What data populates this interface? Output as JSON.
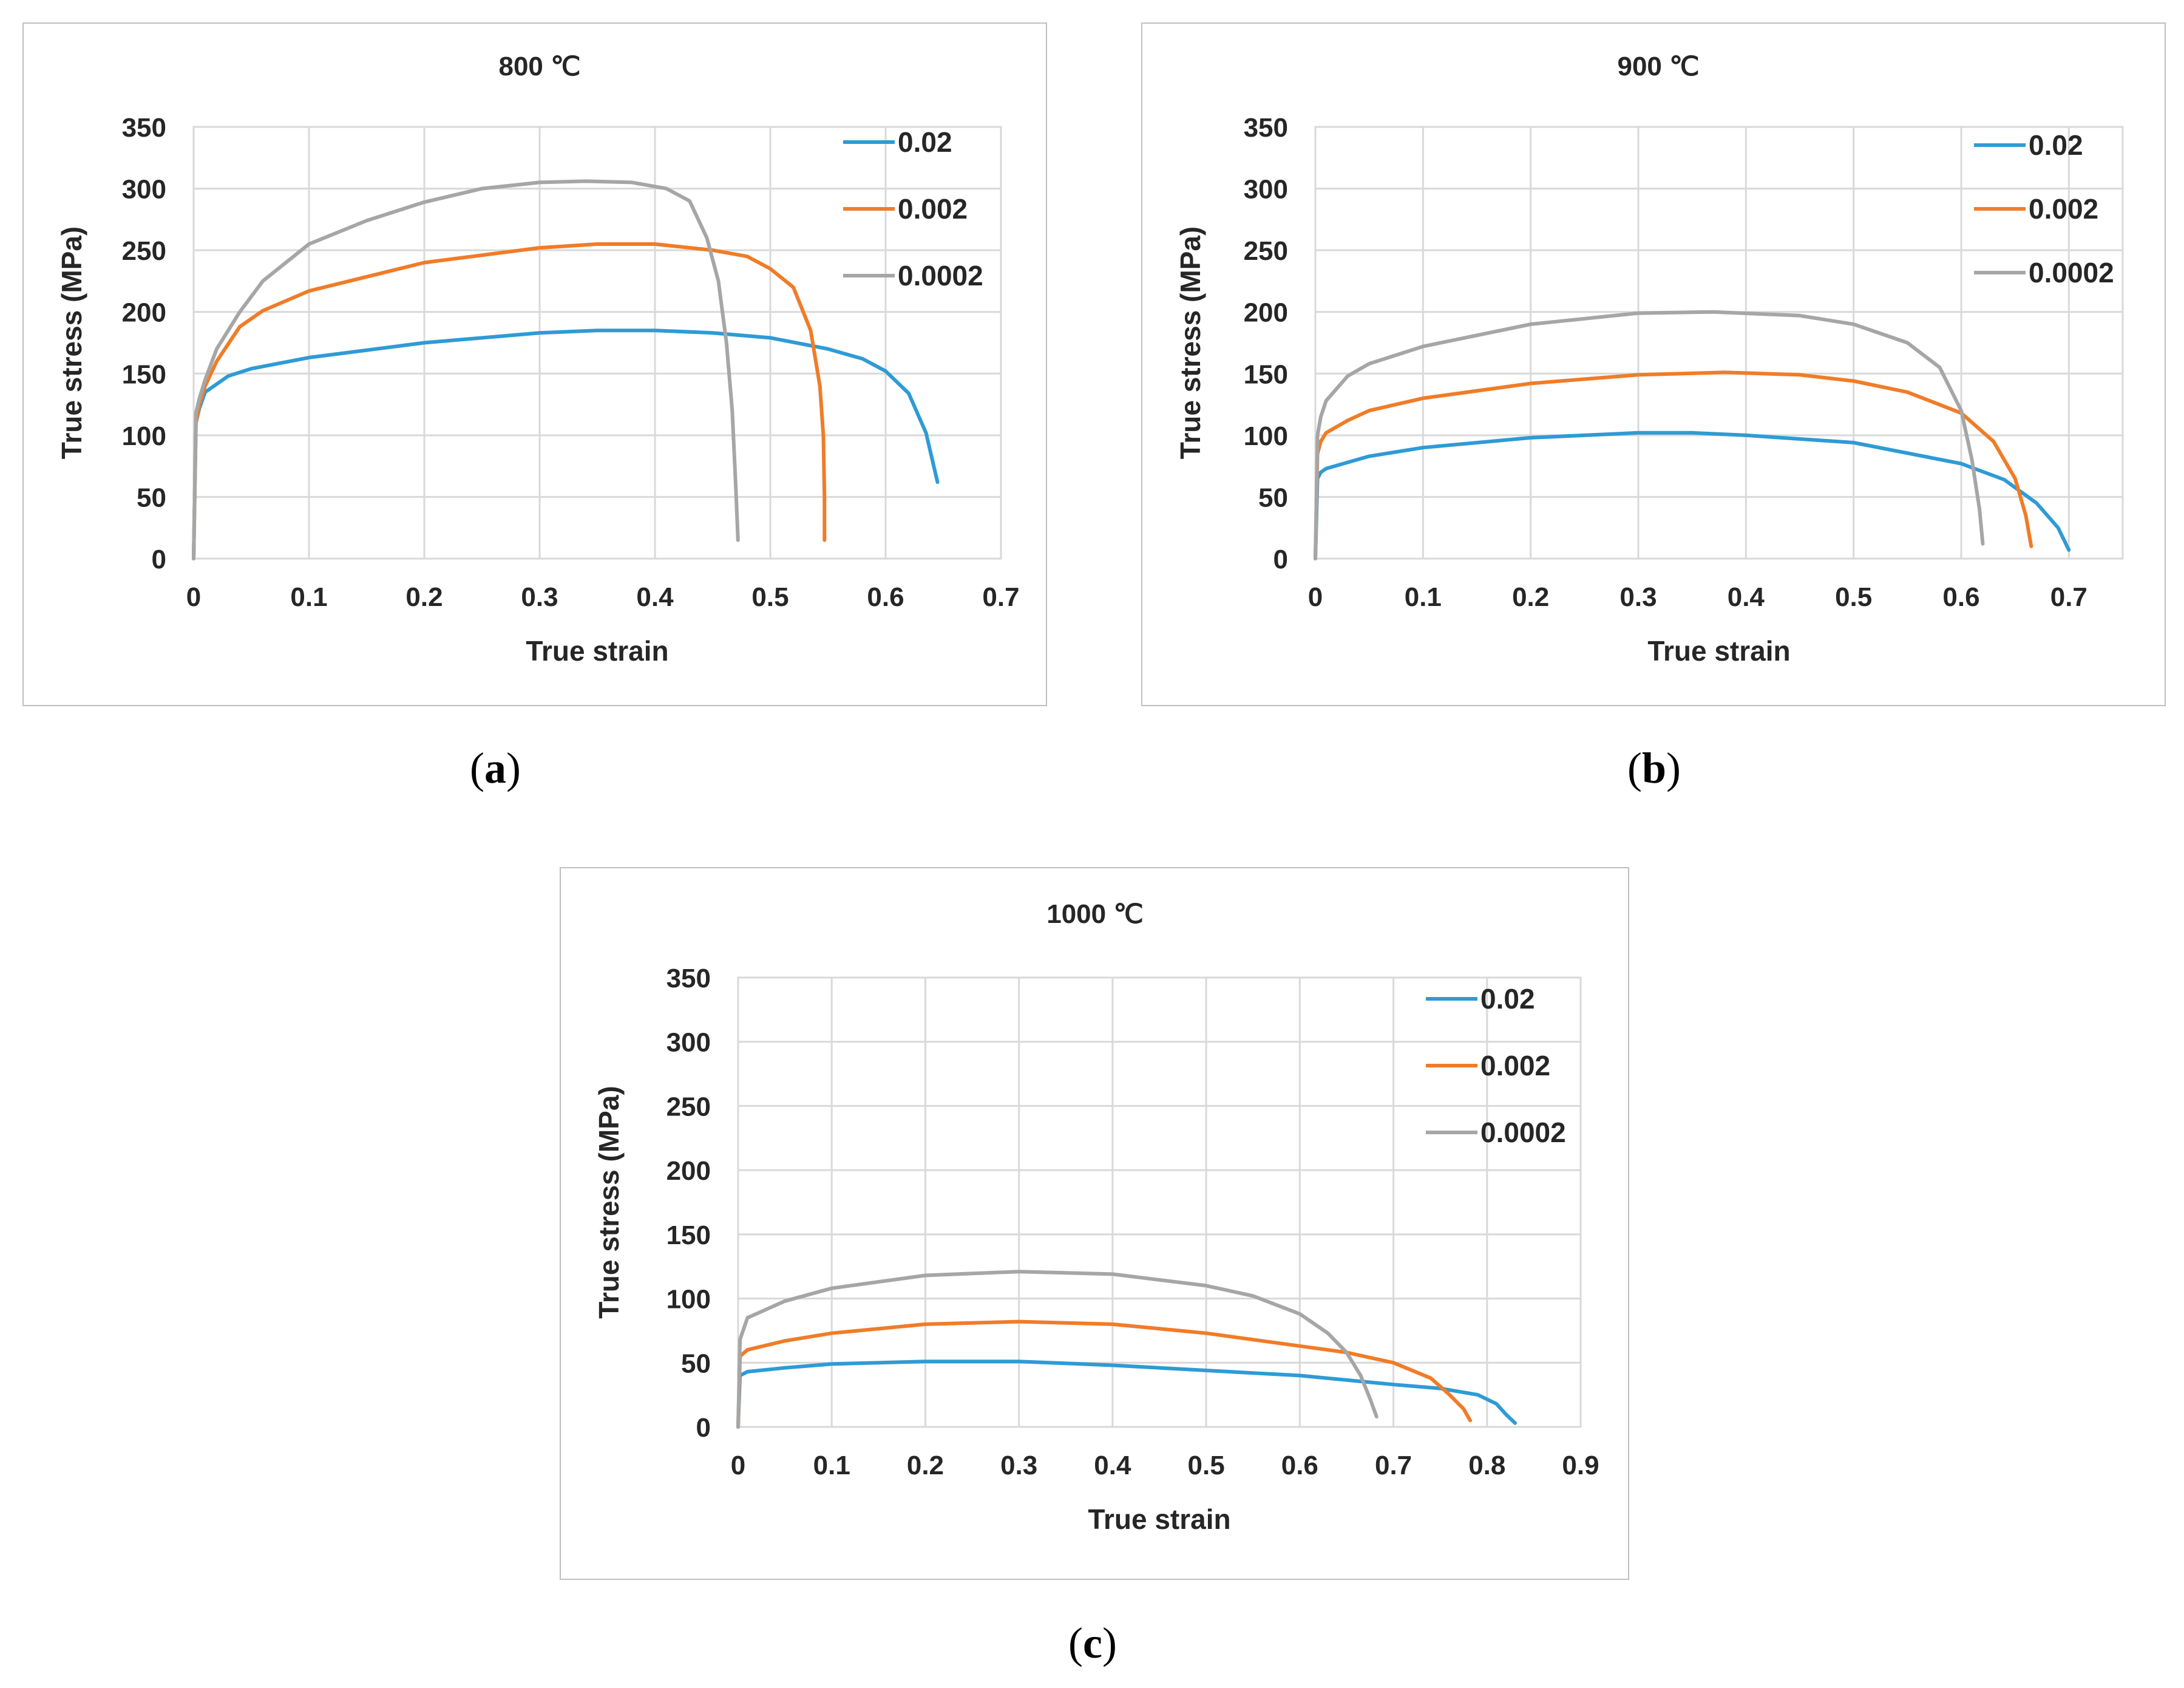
{
  "colors": {
    "s1": "#2e9bd6",
    "s2": "#f07c28",
    "s3": "#a6a6a6",
    "grid": "#d9d9d9",
    "frame": "#bfbfbf"
  },
  "captions": {
    "a": "a",
    "b": "b",
    "c": "c"
  },
  "chart_data": [
    {
      "id": "a",
      "type": "line",
      "title": "800 ℃",
      "xlabel": "True strain",
      "ylabel": "True stress (MPa)",
      "xlim": [
        0,
        0.7
      ],
      "ylim": [
        0,
        350
      ],
      "xticks": [
        0,
        0.1,
        0.2,
        0.3,
        0.4,
        0.5,
        0.6,
        0.7
      ],
      "xtick_labels": [
        "0",
        "0.1",
        "0.2",
        "0.3",
        "0.4",
        "0.5",
        "0.6",
        "0.7"
      ],
      "yticks": [
        0,
        50,
        100,
        150,
        200,
        250,
        300,
        350
      ],
      "ytick_labels": [
        "0",
        "50",
        "100",
        "150",
        "200",
        "250",
        "300",
        "350"
      ],
      "grid": true,
      "legend": "top-right",
      "series": [
        {
          "name": "0.02",
          "color_key": "s1",
          "x": [
            0,
            0.002,
            0.005,
            0.01,
            0.03,
            0.05,
            0.1,
            0.2,
            0.3,
            0.35,
            0.4,
            0.45,
            0.5,
            0.55,
            0.58,
            0.6,
            0.62,
            0.635,
            0.645
          ],
          "y": [
            0,
            110,
            122,
            135,
            148,
            154,
            163,
            175,
            183,
            185,
            185,
            183,
            179,
            170,
            162,
            152,
            134,
            102,
            62
          ]
        },
        {
          "name": "0.002",
          "color_key": "s2",
          "x": [
            0,
            0.002,
            0.005,
            0.01,
            0.02,
            0.04,
            0.06,
            0.1,
            0.2,
            0.3,
            0.35,
            0.4,
            0.45,
            0.48,
            0.5,
            0.52,
            0.535,
            0.543,
            0.546,
            0.547,
            0.547
          ],
          "y": [
            0,
            110,
            125,
            140,
            160,
            188,
            201,
            217,
            240,
            252,
            255,
            255,
            250,
            245,
            235,
            220,
            185,
            140,
            100,
            50,
            15
          ]
        },
        {
          "name": "0.0002",
          "color_key": "s3",
          "x": [
            0,
            0.002,
            0.005,
            0.01,
            0.02,
            0.04,
            0.06,
            0.1,
            0.15,
            0.2,
            0.25,
            0.3,
            0.34,
            0.38,
            0.41,
            0.43,
            0.445,
            0.455,
            0.462,
            0.467,
            0.47,
            0.472
          ],
          "y": [
            0,
            118,
            130,
            145,
            170,
            200,
            225,
            255,
            274,
            289,
            300,
            305,
            306,
            305,
            300,
            290,
            260,
            225,
            175,
            120,
            60,
            15
          ]
        }
      ]
    },
    {
      "id": "b",
      "type": "line",
      "title": "900 ℃",
      "xlabel": "True strain",
      "ylabel": "True stress (MPa)",
      "xlim": [
        0,
        0.75
      ],
      "ylim": [
        0,
        350
      ],
      "xticks": [
        0,
        0.1,
        0.2,
        0.3,
        0.4,
        0.5,
        0.6,
        0.7
      ],
      "xtick_labels": [
        "0",
        "0.1",
        "0.2",
        "0.3",
        "0.4",
        "0.5",
        "0.6",
        "0.7"
      ],
      "yticks": [
        0,
        50,
        100,
        150,
        200,
        250,
        300,
        350
      ],
      "ytick_labels": [
        "0",
        "50",
        "100",
        "150",
        "200",
        "250",
        "300",
        "350"
      ],
      "grid": true,
      "legend": "top-right",
      "series": [
        {
          "name": "0.02",
          "color_key": "s1",
          "x": [
            0,
            0.002,
            0.005,
            0.01,
            0.03,
            0.05,
            0.1,
            0.2,
            0.3,
            0.35,
            0.4,
            0.5,
            0.6,
            0.64,
            0.67,
            0.69,
            0.7
          ],
          "y": [
            0,
            65,
            70,
            73,
            78,
            83,
            90,
            98,
            102,
            102,
            100,
            94,
            77,
            64,
            45,
            25,
            7
          ]
        },
        {
          "name": "0.002",
          "color_key": "s2",
          "x": [
            0,
            0.002,
            0.005,
            0.01,
            0.03,
            0.05,
            0.1,
            0.2,
            0.3,
            0.38,
            0.45,
            0.5,
            0.55,
            0.6,
            0.63,
            0.65,
            0.66,
            0.665
          ],
          "y": [
            0,
            85,
            95,
            102,
            112,
            120,
            130,
            142,
            149,
            151,
            149,
            144,
            135,
            118,
            95,
            65,
            35,
            10
          ]
        },
        {
          "name": "0.0002",
          "color_key": "s3",
          "x": [
            0,
            0.002,
            0.005,
            0.01,
            0.03,
            0.05,
            0.1,
            0.2,
            0.3,
            0.37,
            0.45,
            0.5,
            0.55,
            0.58,
            0.6,
            0.61,
            0.617,
            0.62
          ],
          "y": [
            0,
            100,
            115,
            128,
            148,
            158,
            172,
            190,
            199,
            200,
            197,
            190,
            175,
            155,
            120,
            80,
            40,
            12
          ]
        }
      ]
    },
    {
      "id": "c",
      "type": "line",
      "title": "1000 ℃",
      "xlabel": "True strain",
      "ylabel": "True stress (MPa)",
      "xlim": [
        0,
        0.9
      ],
      "ylim": [
        0,
        350
      ],
      "xticks": [
        0,
        0.1,
        0.2,
        0.3,
        0.4,
        0.5,
        0.6,
        0.7,
        0.8,
        0.9
      ],
      "xtick_labels": [
        "0",
        "0.1",
        "0.2",
        "0.3",
        "0.4",
        "0.5",
        "0.6",
        "0.7",
        "0.8",
        "0.9"
      ],
      "yticks": [
        0,
        50,
        100,
        150,
        200,
        250,
        300,
        350
      ],
      "ytick_labels": [
        "0",
        "50",
        "100",
        "150",
        "200",
        "250",
        "300",
        "350"
      ],
      "grid": true,
      "legend": "top-right",
      "series": [
        {
          "name": "0.02",
          "color_key": "s1",
          "x": [
            0,
            0.002,
            0.01,
            0.05,
            0.1,
            0.2,
            0.3,
            0.4,
            0.5,
            0.6,
            0.7,
            0.75,
            0.79,
            0.81,
            0.82,
            0.83
          ],
          "y": [
            0,
            40,
            43,
            46,
            49,
            51,
            51,
            48,
            44,
            40,
            33,
            30,
            25,
            18,
            10,
            3
          ]
        },
        {
          "name": "0.002",
          "color_key": "s2",
          "x": [
            0,
            0.002,
            0.01,
            0.05,
            0.1,
            0.2,
            0.3,
            0.4,
            0.5,
            0.6,
            0.65,
            0.7,
            0.74,
            0.76,
            0.775,
            0.782
          ],
          "y": [
            0,
            55,
            60,
            67,
            73,
            80,
            82,
            80,
            73,
            63,
            58,
            50,
            38,
            25,
            14,
            5
          ]
        },
        {
          "name": "0.0002",
          "color_key": "s3",
          "x": [
            0,
            0.002,
            0.01,
            0.05,
            0.1,
            0.2,
            0.3,
            0.4,
            0.5,
            0.55,
            0.6,
            0.63,
            0.65,
            0.665,
            0.675,
            0.682
          ],
          "y": [
            0,
            68,
            85,
            98,
            108,
            118,
            121,
            119,
            110,
            102,
            88,
            73,
            58,
            40,
            22,
            8
          ]
        }
      ]
    }
  ]
}
